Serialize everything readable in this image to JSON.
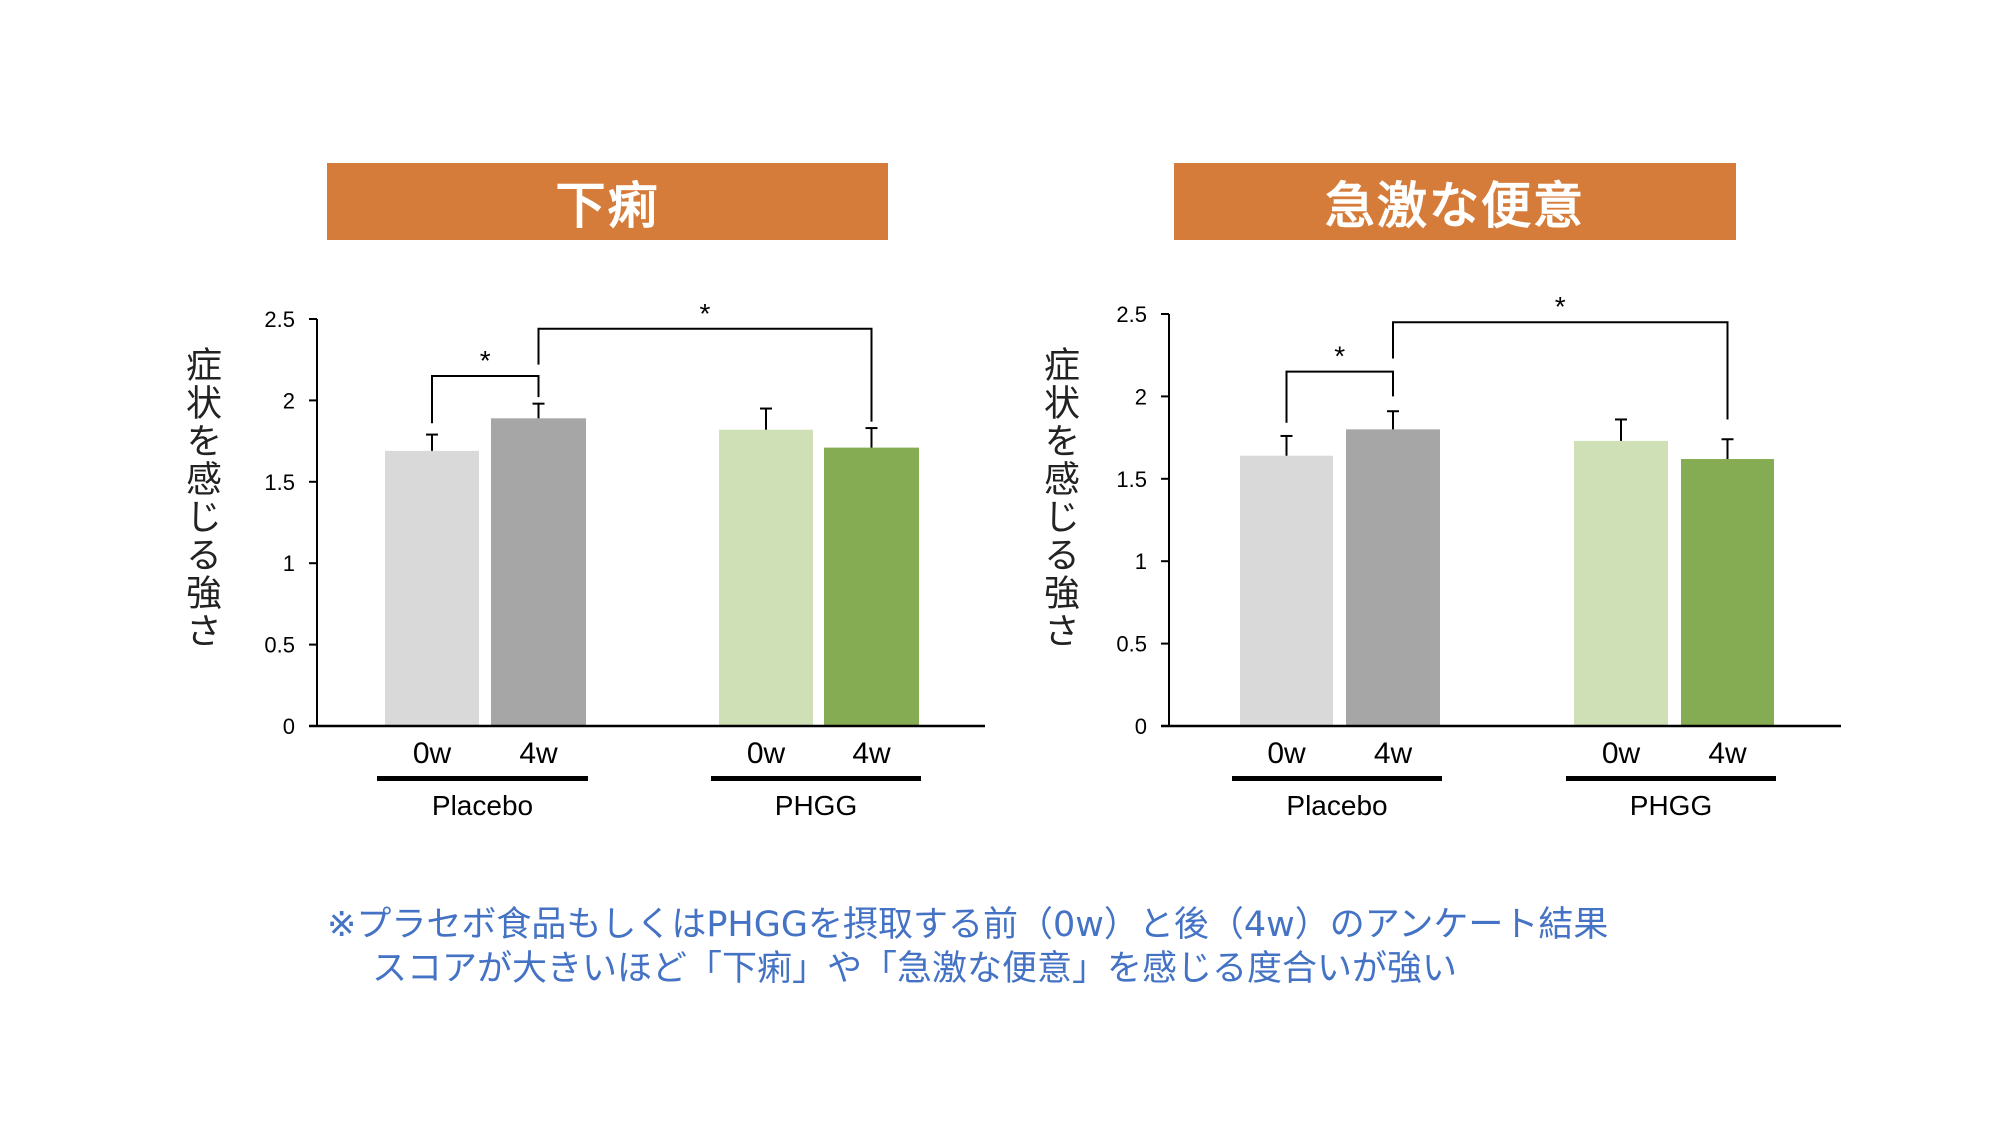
{
  "chart_data": [
    {
      "type": "bar",
      "title": "下痢",
      "ylabel": "症状を感じる強さ",
      "ylim": [
        0,
        2.5
      ],
      "yticks": [
        "0",
        "0.5",
        "1",
        "1.5",
        "2",
        "2.5"
      ],
      "grid": false,
      "categories": [
        "0w",
        "4w",
        "0w",
        "4w"
      ],
      "groups": [
        "Placebo",
        "PHGG"
      ],
      "values": [
        1.69,
        1.89,
        1.82,
        1.71
      ],
      "error_upper": [
        1.79,
        1.98,
        1.95,
        1.83
      ],
      "colors": [
        "#d9d9d9",
        "#a6a6a6",
        "#cfe0b6",
        "#85ac52"
      ],
      "significance": [
        {
          "from": 0,
          "to": 1,
          "label": "*"
        },
        {
          "from": 1,
          "to": 3,
          "label": "*"
        }
      ]
    },
    {
      "type": "bar",
      "title": "急激な便意",
      "ylabel": "症状を感じる強さ",
      "ylim": [
        0,
        2.5
      ],
      "yticks": [
        "0",
        "0.5",
        "1",
        "1.5",
        "2",
        "2.5"
      ],
      "grid": false,
      "categories": [
        "0w",
        "4w",
        "0w",
        "4w"
      ],
      "groups": [
        "Placebo",
        "PHGG"
      ],
      "values": [
        1.64,
        1.8,
        1.73,
        1.62
      ],
      "error_upper": [
        1.76,
        1.91,
        1.86,
        1.74
      ],
      "colors": [
        "#d9d9d9",
        "#a6a6a6",
        "#cfe0b6",
        "#85ac52"
      ],
      "significance": [
        {
          "from": 0,
          "to": 1,
          "label": "*"
        },
        {
          "from": 1,
          "to": 3,
          "label": "*"
        }
      ]
    }
  ],
  "note": {
    "line1": "※プラセボ食品もしくはPHGGを摂取する前（0w）と後（4w）のアンケート結果",
    "line2": "スコアが大きいほど「下痢」や「急激な便意」を感じる度合いが強い"
  },
  "colors": {
    "title_bg": "#d57c3a",
    "note_text": "#4472c4"
  }
}
